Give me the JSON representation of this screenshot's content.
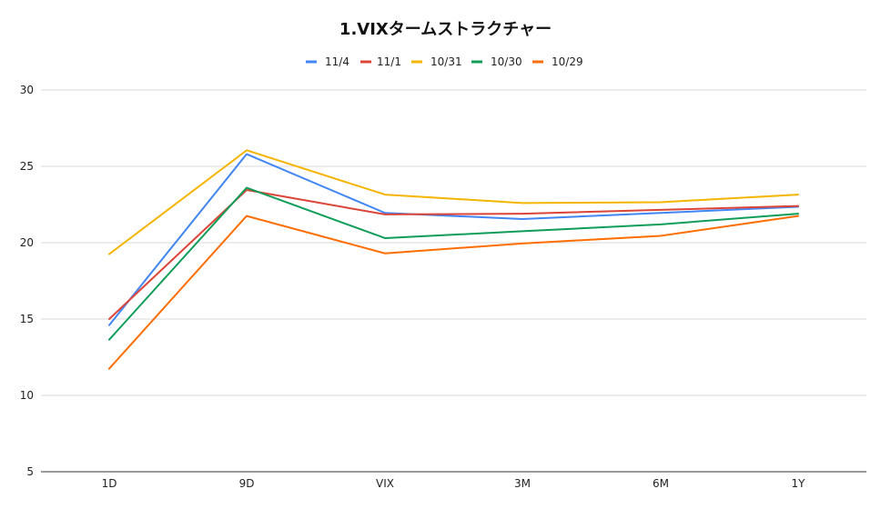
{
  "chart_data": {
    "type": "line",
    "title": "1.VIXタームストラクチャー",
    "categories": [
      "1D",
      "9D",
      "VIX",
      "3M",
      "6M",
      "1Y"
    ],
    "ylim": [
      5,
      30
    ],
    "yticks": [
      5,
      10,
      15,
      20,
      25,
      30
    ],
    "grid": true,
    "legend_position": "top",
    "series": [
      {
        "name": "11/4",
        "color": "#4285F4",
        "values": [
          14.6,
          25.8,
          21.95,
          21.55,
          21.95,
          22.35
        ]
      },
      {
        "name": "11/1",
        "color": "#DB4437",
        "values": [
          15.0,
          23.45,
          21.85,
          21.9,
          22.15,
          22.4
        ]
      },
      {
        "name": "10/31",
        "color": "#F4B400",
        "values": [
          19.25,
          26.05,
          23.15,
          22.6,
          22.65,
          23.15
        ]
      },
      {
        "name": "10/30",
        "color": "#0F9D58",
        "values": [
          13.65,
          23.6,
          20.3,
          20.75,
          21.2,
          21.9
        ]
      },
      {
        "name": "10/29",
        "color": "#FF6D01",
        "values": [
          11.75,
          21.75,
          19.3,
          19.95,
          20.45,
          21.75
        ]
      }
    ]
  }
}
